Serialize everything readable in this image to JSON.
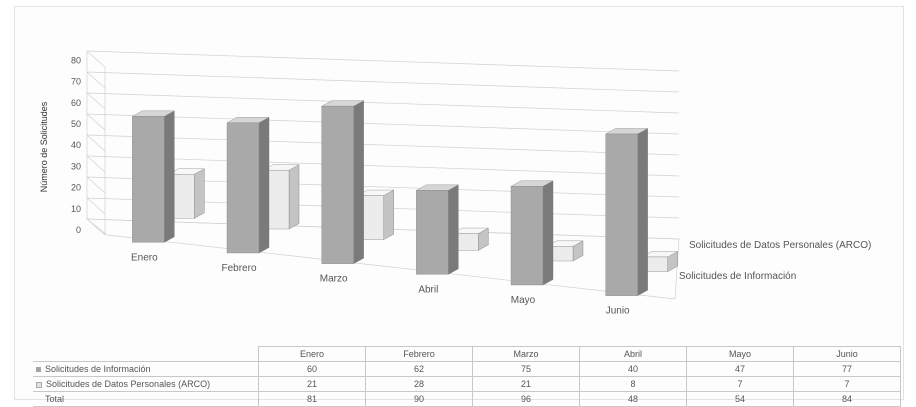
{
  "colors": {
    "series_a_front": "#a9a9a9",
    "series_a_side": "#7a7a7a",
    "series_a_top": "#d6d6d6",
    "series_b_front": "#ececec",
    "series_b_side": "#c4c4c4",
    "series_b_top": "#f7f7f7",
    "grid": "#d0d0d0"
  },
  "chart_data": {
    "type": "bar",
    "subtype": "3d-column",
    "ylabel": "Número de Solicitudes",
    "ylim": [
      0,
      80
    ],
    "yticks": [
      "0",
      "10",
      "20",
      "30",
      "40",
      "50",
      "60",
      "70",
      "80"
    ],
    "categories": [
      "Enero",
      "Febrero",
      "Marzo",
      "Abril",
      "Mayo",
      "Junio"
    ],
    "series": [
      {
        "name": "Solicitudes de Información",
        "values": [
          60,
          62,
          75,
          40,
          47,
          77
        ]
      },
      {
        "name": "Solicitudes de Datos Personales (ARCO)",
        "values": [
          21,
          28,
          21,
          8,
          7,
          7
        ]
      }
    ],
    "grid": true
  },
  "table": {
    "columns": [
      "Enero",
      "Febrero",
      "Marzo",
      "Abril",
      "Mayo",
      "Junio"
    ],
    "rows": [
      {
        "label": "Solicitudes de Información",
        "values": [
          "60",
          "62",
          "75",
          "40",
          "47",
          "77"
        ]
      },
      {
        "label": "Solicitudes de Datos Personales (ARCO)",
        "values": [
          "21",
          "28",
          "21",
          "8",
          "7",
          "7"
        ]
      },
      {
        "label": "Total",
        "values": [
          "81",
          "90",
          "96",
          "48",
          "54",
          "84"
        ]
      }
    ]
  }
}
